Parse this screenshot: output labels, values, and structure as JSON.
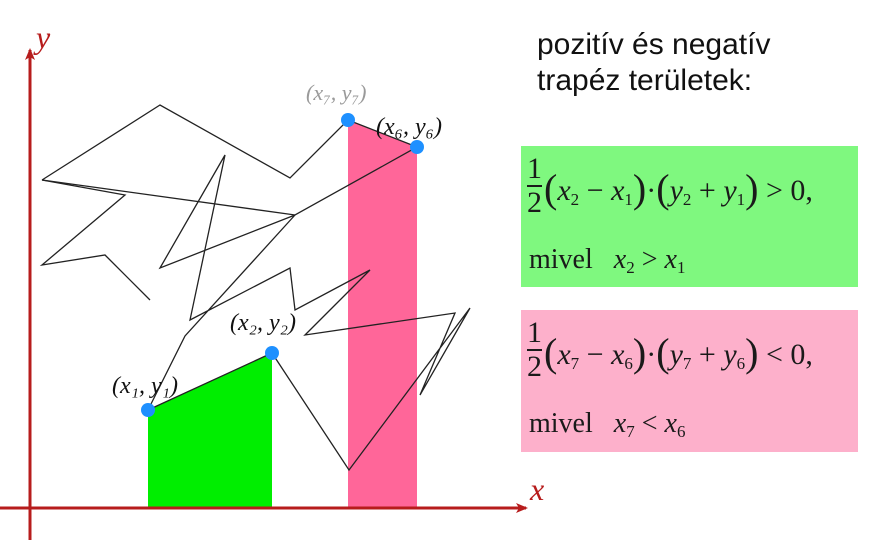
{
  "title": {
    "line1": "pozitív és negatív",
    "line2": "trapéz területek:"
  },
  "axes": {
    "x_label": "x",
    "y_label": "y",
    "color": "#b71c1c"
  },
  "points": {
    "p1": "(x₁, y₁)",
    "p2": "(x₂, y₂)",
    "p6": "(x₆, y₆)",
    "p7": "(x₇, y₇)"
  },
  "colors": {
    "positive_fill": "#00ee00",
    "negative_fill": "#ff6699",
    "point": "#1e90ff",
    "green_box": "#7ff87f",
    "pink_box": "#fdb0cb"
  },
  "formulas": {
    "positive": {
      "frac_num": "1",
      "frac_den": "2",
      "a": "x",
      "a_sub": "2",
      "b": "x",
      "b_sub": "1",
      "c": "y",
      "c_sub": "2",
      "d": "y",
      "d_sub": "1",
      "relation": "> 0,",
      "condition_word": "mivel",
      "cond_left": "x",
      "cond_left_sub": "2",
      "cond_op": ">",
      "cond_right": "x",
      "cond_right_sub": "1"
    },
    "negative": {
      "frac_num": "1",
      "frac_den": "2",
      "a": "x",
      "a_sub": "7",
      "b": "x",
      "b_sub": "6",
      "c": "y",
      "c_sub": "7",
      "d": "y",
      "d_sub": "6",
      "relation": "< 0,",
      "condition_word": "mivel",
      "cond_left": "x",
      "cond_left_sub": "7",
      "cond_op": "<",
      "cond_right": "x",
      "cond_right_sub": "6"
    }
  }
}
